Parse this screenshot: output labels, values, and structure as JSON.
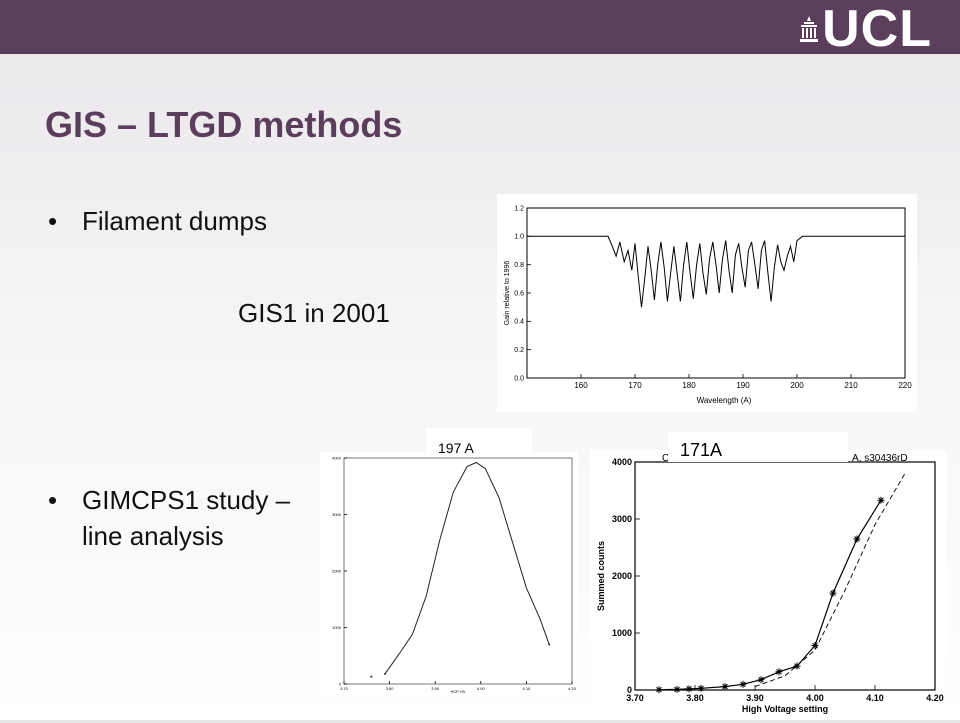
{
  "slide": {
    "logo": "UCL",
    "title": "GIS – LTGD methods",
    "bullets": [
      {
        "text": "Filament dumps"
      },
      {
        "text": "GIMCPS1 study –",
        "cont": "line analysis"
      }
    ],
    "caption": "GIS1 in 2001",
    "colors": {
      "banner": "#5b3e5b",
      "title": "#5b3e5b"
    }
  },
  "chart_data": [
    {
      "type": "line",
      "xlabel": "Wavelength (A)",
      "ylabel": "Gain relative to 1996",
      "xlim": [
        150,
        220
      ],
      "ylim": [
        0.0,
        1.2
      ],
      "xticks": [
        160,
        170,
        180,
        190,
        200,
        210,
        220
      ],
      "yticks": [
        0.0,
        0.2,
        0.4,
        0.6,
        0.8,
        1.0,
        1.2
      ],
      "x": [
        150,
        165,
        165.8,
        166.5,
        167.2,
        168,
        168.7,
        169.4,
        170,
        170.6,
        171.2,
        171.8,
        172.4,
        173,
        173.6,
        174.2,
        174.8,
        175.4,
        176,
        176.6,
        177.2,
        177.8,
        178.4,
        179,
        179.6,
        180.2,
        180.8,
        181.4,
        182,
        182.6,
        183.2,
        183.8,
        184.4,
        185,
        185.6,
        186.2,
        186.8,
        187.4,
        188,
        188.6,
        189.2,
        189.8,
        190.4,
        191,
        191.6,
        192.2,
        192.8,
        193.4,
        194,
        194.6,
        195.2,
        195.8,
        196.4,
        197,
        197.6,
        198.2,
        198.8,
        199.4,
        200,
        201,
        222
      ],
      "y": [
        1.0,
        1.0,
        0.93,
        0.86,
        0.96,
        0.82,
        0.9,
        0.76,
        0.95,
        0.72,
        0.5,
        0.7,
        0.93,
        0.76,
        0.55,
        0.8,
        0.96,
        0.78,
        0.54,
        0.74,
        0.93,
        0.74,
        0.54,
        0.8,
        0.96,
        0.74,
        0.56,
        0.8,
        0.95,
        0.74,
        0.59,
        0.84,
        0.96,
        0.8,
        0.6,
        0.84,
        0.97,
        0.76,
        0.6,
        0.87,
        0.95,
        0.78,
        0.64,
        0.9,
        0.96,
        0.8,
        0.63,
        0.9,
        0.97,
        0.75,
        0.54,
        0.78,
        0.94,
        0.82,
        0.76,
        0.86,
        0.93,
        0.82,
        0.97,
        1.0,
        1.0
      ]
    },
    {
      "type": "line",
      "label": "197 A",
      "xlim": [
        3.7,
        4.2
      ],
      "ylim": [
        0,
        4000
      ],
      "xticks": [
        3.7,
        3.8,
        3.9,
        4.0,
        4.1,
        4.2
      ],
      "yticks": [
        0,
        1000,
        2000,
        3000,
        4000
      ],
      "x": [
        3.79,
        3.82,
        3.85,
        3.88,
        3.91,
        3.94,
        3.97,
        3.99,
        4.01,
        4.04,
        4.07,
        4.1,
        4.13,
        4.15
      ],
      "y": [
        180,
        520,
        880,
        1550,
        2550,
        3400,
        3850,
        3920,
        3810,
        3300,
        2500,
        1700,
        1150,
        700
      ],
      "points": [
        [
          3.76,
          130
        ],
        [
          3.79,
          180
        ],
        [
          4.15,
          700
        ]
      ]
    },
    {
      "type": "scatter",
      "label": "171A",
      "xlabel": "High Voltage setting",
      "ylabel": "Summed counts",
      "xlim": [
        3.7,
        4.2
      ],
      "ylim": [
        0,
        4000
      ],
      "xticks": [
        3.7,
        3.8,
        3.9,
        4.0,
        4.1,
        4.2
      ],
      "xtick_labels": [
        "3.70",
        "3.80",
        "3.90",
        "4.00",
        "4.10",
        "4.20"
      ],
      "yticks": [
        0,
        1000,
        2000,
        3000,
        4000
      ],
      "header_text": "C",
      "header_right": "A, s30436rD",
      "x": [
        3.74,
        3.77,
        3.79,
        3.81,
        3.85,
        3.88,
        3.91,
        3.94,
        3.97,
        4.0,
        4.03,
        4.07,
        4.11
      ],
      "y": [
        5,
        10,
        20,
        30,
        60,
        100,
        180,
        320,
        420,
        780,
        1700,
        2650,
        3330
      ]
    }
  ]
}
